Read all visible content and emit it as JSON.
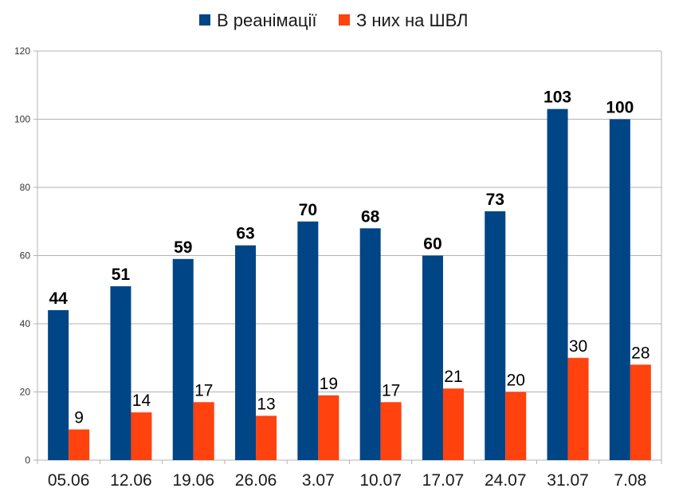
{
  "chart_data": {
    "type": "bar",
    "title": "",
    "xlabel": "",
    "ylabel": "",
    "ylim": [
      0,
      120
    ],
    "yticks": [
      0,
      20,
      40,
      60,
      80,
      100,
      120
    ],
    "grid": true,
    "legend_position": "top-center",
    "categories": [
      "05.06",
      "12.06",
      "19.06",
      "26.06",
      "3.07",
      "10.07",
      "17.07",
      "24.07",
      "31.07",
      "7.08"
    ],
    "series": [
      {
        "name": "В реанімації",
        "color": "#004586",
        "label_weight": "bold",
        "values": [
          44,
          51,
          59,
          63,
          70,
          68,
          60,
          73,
          103,
          100
        ]
      },
      {
        "name": "З них на ШВЛ",
        "color": "#ff420e",
        "label_weight": "normal",
        "values": [
          9,
          14,
          17,
          13,
          19,
          17,
          21,
          20,
          30,
          28
        ]
      }
    ]
  }
}
